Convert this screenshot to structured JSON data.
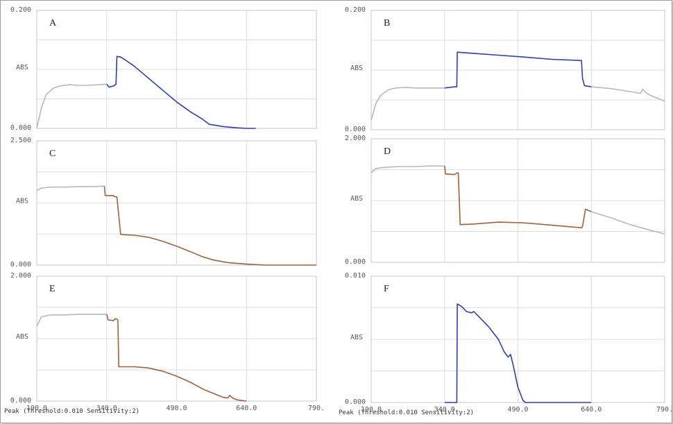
{
  "chart_data": [
    {
      "type": "line",
      "panel": "A",
      "ylabel": "ABS",
      "yticks": [
        "0.200",
        "0.000"
      ],
      "ylim": [
        0,
        0.2
      ],
      "xlim": [
        190,
        790
      ],
      "xticks": [],
      "grid": true,
      "series": [
        {
          "color": "#b8b8b8",
          "x": [
            190,
            200,
            210,
            225,
            240,
            260,
            280,
            300,
            320,
            340
          ],
          "y": [
            0.0,
            0.035,
            0.057,
            0.068,
            0.072,
            0.074,
            0.073,
            0.073,
            0.074,
            0.075
          ]
        },
        {
          "color": "#2a3dbd",
          "x": [
            340,
            345,
            355,
            360,
            362,
            370,
            380,
            400,
            430,
            460,
            490,
            520,
            545,
            560,
            590,
            620,
            640,
            660
          ],
          "y": [
            0.075,
            0.07,
            0.072,
            0.075,
            0.122,
            0.121,
            0.116,
            0.105,
            0.085,
            0.065,
            0.045,
            0.028,
            0.016,
            0.007,
            0.003,
            0.001,
            0.0,
            0.0
          ]
        }
      ]
    },
    {
      "type": "line",
      "panel": "B",
      "ylabel": "ABS",
      "yticks": [
        "0.200",
        "0.000"
      ],
      "ylim": [
        0,
        0.2
      ],
      "xlim": [
        190,
        790
      ],
      "xticks": [],
      "grid": true,
      "series": [
        {
          "color": "#b8b8b8",
          "x": [
            190,
            200,
            210,
            225,
            240,
            260,
            280,
            300,
            320,
            340
          ],
          "y": [
            0.016,
            0.045,
            0.058,
            0.067,
            0.07,
            0.071,
            0.07,
            0.07,
            0.07,
            0.07
          ]
        },
        {
          "color": "#2a3dbd",
          "x": [
            340,
            360,
            365,
            366,
            400,
            450,
            500,
            560,
            620,
            622,
            626,
            640
          ],
          "y": [
            0.07,
            0.072,
            0.072,
            0.13,
            0.128,
            0.125,
            0.122,
            0.118,
            0.116,
            0.086,
            0.074,
            0.072
          ]
        },
        {
          "color": "#b8b8b8",
          "x": [
            640,
            680,
            720,
            740,
            745,
            752,
            760,
            790
          ],
          "y": [
            0.072,
            0.069,
            0.064,
            0.061,
            0.068,
            0.062,
            0.058,
            0.048
          ]
        }
      ]
    },
    {
      "type": "line",
      "panel": "C",
      "ylabel": "ABS",
      "yticks": [
        "2.500",
        "0.000"
      ],
      "ylim": [
        0,
        2.5
      ],
      "xlim": [
        190,
        790
      ],
      "xticks": [],
      "grid": true,
      "series": [
        {
          "color": "#b8b8b8",
          "x": [
            190,
            200,
            220,
            250,
            280,
            310,
            335
          ],
          "y": [
            1.5,
            1.55,
            1.57,
            1.57,
            1.58,
            1.58,
            1.59
          ]
        },
        {
          "color": "#a0603a",
          "x": [
            335,
            337,
            355,
            356,
            362,
            370,
            380,
            400,
            430,
            460,
            490,
            520,
            545,
            570,
            600,
            640,
            680,
            720,
            790
          ],
          "y": [
            1.59,
            1.4,
            1.4,
            1.38,
            1.37,
            0.62,
            0.61,
            0.6,
            0.56,
            0.48,
            0.38,
            0.27,
            0.17,
            0.1,
            0.05,
            0.02,
            0.0,
            0.0,
            0.0
          ]
        }
      ]
    },
    {
      "type": "line",
      "panel": "D",
      "ylabel": "ABS",
      "yticks": [
        "2.000",
        "0.000"
      ],
      "ylim": [
        0,
        2.0
      ],
      "xlim": [
        190,
        790
      ],
      "xticks": [],
      "grid": true,
      "series": [
        {
          "color": "#b8b8b8",
          "x": [
            190,
            200,
            220,
            250,
            280,
            310,
            340
          ],
          "y": [
            1.45,
            1.52,
            1.54,
            1.55,
            1.55,
            1.56,
            1.56
          ]
        },
        {
          "color": "#a0603a",
          "x": [
            340,
            342,
            360,
            366,
            368,
            372,
            400,
            450,
            500,
            560,
            620,
            622,
            628,
            640
          ],
          "y": [
            1.56,
            1.43,
            1.42,
            1.45,
            1.45,
            0.61,
            0.62,
            0.65,
            0.64,
            0.6,
            0.56,
            0.58,
            0.86,
            0.82
          ]
        },
        {
          "color": "#b8b8b8",
          "x": [
            640,
            680,
            720,
            760,
            790
          ],
          "y": [
            0.82,
            0.72,
            0.61,
            0.52,
            0.46
          ]
        }
      ]
    },
    {
      "type": "line",
      "panel": "E",
      "ylabel": "ABS",
      "yticks": [
        "2.000",
        "0.000"
      ],
      "ylim": [
        0,
        2.0
      ],
      "xlim": [
        190,
        790
      ],
      "xticks": [
        "190.0",
        "340.0",
        "490.0",
        "640.0",
        "790."
      ],
      "status_text": "Peak (Threshold:0.010  Sensitivity:2)",
      "grid": true,
      "series": [
        {
          "color": "#b8b8b8",
          "x": [
            190,
            200,
            220,
            250,
            280,
            310,
            340
          ],
          "y": [
            1.2,
            1.35,
            1.38,
            1.38,
            1.39,
            1.39,
            1.39
          ]
        },
        {
          "color": "#a0603a",
          "x": [
            340,
            343,
            355,
            358,
            362,
            364,
            366,
            380,
            400,
            430,
            460,
            490,
            520,
            550,
            590,
            600,
            604,
            610,
            620,
            640
          ],
          "y": [
            1.39,
            1.3,
            1.29,
            1.32,
            1.31,
            1.3,
            0.55,
            0.55,
            0.55,
            0.53,
            0.48,
            0.4,
            0.3,
            0.18,
            0.06,
            0.05,
            0.09,
            0.05,
            0.02,
            0.0
          ]
        }
      ]
    },
    {
      "type": "line",
      "panel": "F",
      "ylabel": "ABS",
      "yticks": [
        "0.010",
        "0.000"
      ],
      "ylim": [
        0,
        0.01
      ],
      "xlim": [
        190,
        790
      ],
      "xticks": [
        "190.0",
        "340.0",
        "490.0",
        "640.0",
        "790."
      ],
      "status_text": "Peak (Threshold:0.010  Sensitivity:2)",
      "grid": true,
      "series": [
        {
          "color": "#2a3dbd",
          "x": [
            340,
            364,
            365,
            366,
            375,
            385,
            395,
            400,
            410,
            430,
            450,
            462,
            470,
            475,
            480,
            490,
            500,
            505,
            515,
            540,
            580,
            640
          ],
          "y": [
            0.0,
            0.0,
            0.0,
            0.0078,
            0.0076,
            0.0072,
            0.0071,
            0.0072,
            0.0068,
            0.006,
            0.005,
            0.004,
            0.0036,
            0.0038,
            0.003,
            0.0012,
            0.0002,
            0.0,
            0.0,
            0.0,
            0.0,
            0.0
          ]
        }
      ]
    }
  ]
}
